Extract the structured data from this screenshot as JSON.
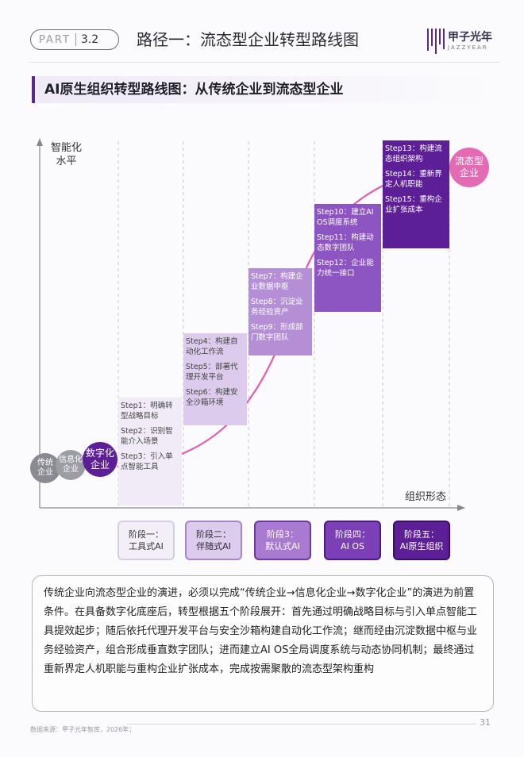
{
  "header": {
    "part_label": "PART",
    "part_number": "3.2",
    "title": "路径一：流态型企业转型路线图",
    "logo_text": "甲子光年",
    "logo_sub": "JAZZYEAR"
  },
  "section_title": "AI原生组织转型路线图：从传统企业到流态型企业",
  "diagram": {
    "y_axis_label_line1": "智能化",
    "y_axis_label_line2": "水平",
    "x_axis_label": "组织形态",
    "start_circles": [
      {
        "line1": "传统",
        "line2": "企业"
      },
      {
        "line1": "信息化",
        "line2": "企业"
      },
      {
        "line1": "数字化",
        "line2": "企业"
      }
    ],
    "end_circle": {
      "line1": "流态型",
      "line2": "企业"
    },
    "step_groups": [
      {
        "steps": [
          "Step1：明确转型战略目标",
          "Step2：识别智能介入场景",
          "Step3：引入单点智能工具"
        ]
      },
      {
        "steps": [
          "Step4：构建自动化工作流",
          "Step5：部署代理开发平台",
          "Step6：构建安全沙箱环境"
        ]
      },
      {
        "steps": [
          "Step7：构建企业数据中枢",
          "Step8：沉淀业务经验资产",
          "Step9：形成部门数字团队"
        ]
      },
      {
        "steps": [
          "Step10：建立AI OS调度系统",
          "Step11：构建动态数字团队",
          "Step12：企业能力统一接口"
        ]
      },
      {
        "steps": [
          "Step13：构建流态组织架构",
          "Step14：重新界定人机职能",
          "Step15：重构企业扩张成本"
        ]
      }
    ],
    "phases": [
      {
        "line1": "阶段一：",
        "line2": "工具式AI"
      },
      {
        "line1": "阶段二：",
        "line2": "伴随式AI"
      },
      {
        "line1": "阶段3：",
        "line2": "默认式AI"
      },
      {
        "line1": "阶段四：",
        "line2": "AI OS"
      },
      {
        "line1": "阶段五：",
        "line2": "AI原生组织"
      }
    ],
    "colors": {
      "curve": "#e05cae",
      "phase5": "#5d1f96",
      "end_circle": "#e26bb4"
    }
  },
  "summary": "传统企业向流态型企业的演进，必须以完成“传统企业→信息化企业→数字化企业”的演进为前置条件。在具备数字化底座后，转型根据五个阶段展开：首先通过明确战略目标与引入单点智能工具提效起步；随后依托代理开发平台与安全沙箱构建自动化工作流；继而经由沉淀数据中枢与业务经验资产，组合形成垂直数字团队；进而建立AI OS全局调度系统与动态协同机制；最终通过重新界定人机职能与重构企业扩张成本，完成按需聚散的流态型架构重构",
  "footer": {
    "source": "数据来源：甲子光年智库，2026年；",
    "page": "31"
  }
}
